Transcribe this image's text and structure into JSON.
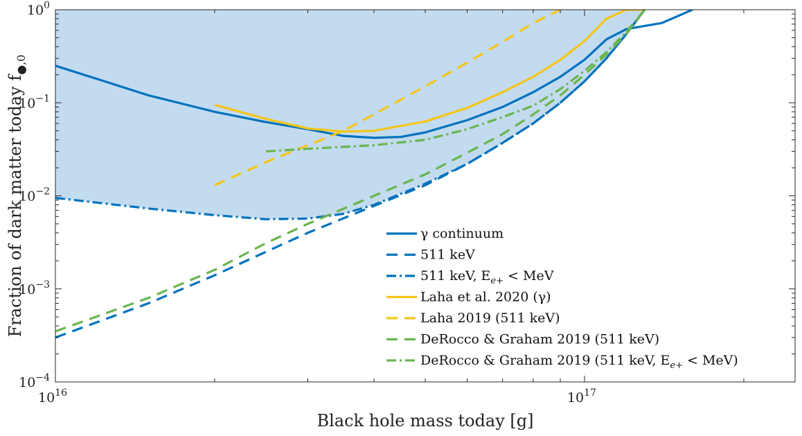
{
  "chart_data": {
    "type": "line",
    "xlabel": "Black hole mass today [g]",
    "ylabel": "Fraction of dark matter today f",
    "ylabel_sub": "●,0",
    "x_scale": "log",
    "y_scale": "log",
    "xlim": [
      1e+16,
      2.5e+17
    ],
    "ylim": [
      0.0001,
      1
    ],
    "x_ticks": [
      {
        "value": 1e+16,
        "base": "10",
        "exp": "16"
      },
      {
        "value": 1e+17,
        "base": "10",
        "exp": "17"
      }
    ],
    "y_ticks": [
      {
        "value": 0.0001,
        "base": "10",
        "exp": "−4"
      },
      {
        "value": 0.001,
        "base": "10",
        "exp": "−3"
      },
      {
        "value": 0.01,
        "base": "10",
        "exp": "−2"
      },
      {
        "value": 0.1,
        "base": "10",
        "exp": "−1"
      },
      {
        "value": 1,
        "base": "10",
        "exp": "0"
      }
    ],
    "grid": false,
    "legend_position": "lower-right",
    "excluded_region_color": "#c3dbef",
    "series": [
      {
        "name": "γ continuum",
        "color": "#0072bd",
        "style": "solid",
        "x": [
          1e+16,
          1.2e+16,
          1.5e+16,
          2e+16,
          2.5e+16,
          3e+16,
          3.5e+16,
          4e+16,
          4.5e+16,
          5e+16,
          6e+16,
          7e+16,
          8e+16,
          9e+16,
          1e+17,
          1.1e+17,
          1.2e+17,
          1.4e+17,
          1.6e+17
        ],
        "y": [
          0.25,
          0.18,
          0.12,
          0.08,
          0.062,
          0.052,
          0.044,
          0.042,
          0.043,
          0.048,
          0.065,
          0.09,
          0.13,
          0.19,
          0.29,
          0.48,
          0.62,
          0.72,
          1.0
        ]
      },
      {
        "name": "511 keV",
        "color": "#0072bd",
        "style": "dash",
        "x": [
          1e+16,
          1.5e+16,
          2e+16,
          2.5e+16,
          3e+16,
          4e+16,
          5e+16,
          6e+16,
          7e+16,
          8e+16,
          9e+16,
          1e+17,
          1.1e+17,
          1.2e+17,
          1.3e+17
        ],
        "y": [
          0.0003,
          0.0007,
          0.0014,
          0.0025,
          0.004,
          0.0078,
          0.013,
          0.022,
          0.037,
          0.06,
          0.1,
          0.17,
          0.3,
          0.55,
          1.0
        ]
      },
      {
        "name": "511 keV, E",
        "name_sub": "e+",
        "name_suffix": "< MeV",
        "color": "#0072bd",
        "style": "dashdot",
        "x": [
          1e+16,
          1.5e+16,
          2e+16,
          2.5e+16,
          3e+16,
          3.5e+16,
          4e+16,
          5e+16,
          6e+16,
          7e+16,
          8e+16,
          9e+16,
          1e+17,
          1.1e+17,
          1.2e+17,
          1.3e+17
        ],
        "y": [
          0.0095,
          0.0073,
          0.0062,
          0.0056,
          0.0057,
          0.0064,
          0.008,
          0.0135,
          0.022,
          0.037,
          0.06,
          0.1,
          0.17,
          0.3,
          0.55,
          1.0
        ]
      },
      {
        "name": "Laha et al. 2020 (γ)",
        "color": "#f5c518",
        "style": "solid",
        "x": [
          2e+16,
          2.5e+16,
          3e+16,
          3.5e+16,
          4e+16,
          5e+16,
          6e+16,
          7e+16,
          8e+16,
          9e+16,
          1e+17,
          1.1e+17,
          1.2e+17,
          1.3e+17
        ],
        "y": [
          0.095,
          0.067,
          0.053,
          0.049,
          0.05,
          0.063,
          0.088,
          0.13,
          0.19,
          0.29,
          0.46,
          0.8,
          1.0,
          1.0
        ]
      },
      {
        "name": "Laha 2019 (511 keV)",
        "color": "#f5c518",
        "style": "dash",
        "x": [
          2e+16,
          2.5e+16,
          3e+16,
          3.5e+16,
          4e+16,
          5e+16,
          6e+16,
          7e+16,
          8e+16,
          9e+16
        ],
        "y": [
          0.013,
          0.023,
          0.035,
          0.05,
          0.075,
          0.15,
          0.27,
          0.45,
          0.72,
          1.0
        ]
      },
      {
        "name": "DeRocco & Graham 2019 (511 keV)",
        "color": "#6ab44f",
        "style": "dash",
        "x": [
          1e+16,
          1.5e+16,
          2e+16,
          2.5e+16,
          3e+16,
          4e+16,
          5e+16,
          6e+16,
          7e+16,
          8e+16,
          9e+16,
          1e+17,
          1.1e+17,
          1.2e+17,
          1.3e+17
        ],
        "y": [
          0.00035,
          0.0008,
          0.0016,
          0.0031,
          0.005,
          0.01,
          0.017,
          0.029,
          0.046,
          0.075,
          0.12,
          0.2,
          0.33,
          0.55,
          1.0
        ]
      },
      {
        "name": "DeRocco & Graham 2019 (511 keV, E",
        "name_sub": "e+",
        "name_suffix": "< MeV)",
        "color": "#6ab44f",
        "style": "dashdot",
        "x": [
          2.5e+16,
          3e+16,
          4e+16,
          5e+16,
          6e+16,
          7e+16,
          8e+16,
          9e+16,
          1e+17,
          1.1e+17,
          1.2e+17,
          1.3e+17
        ],
        "y": [
          0.03,
          0.032,
          0.035,
          0.04,
          0.052,
          0.07,
          0.093,
          0.14,
          0.22,
          0.35,
          0.58,
          1.0
        ]
      }
    ]
  }
}
